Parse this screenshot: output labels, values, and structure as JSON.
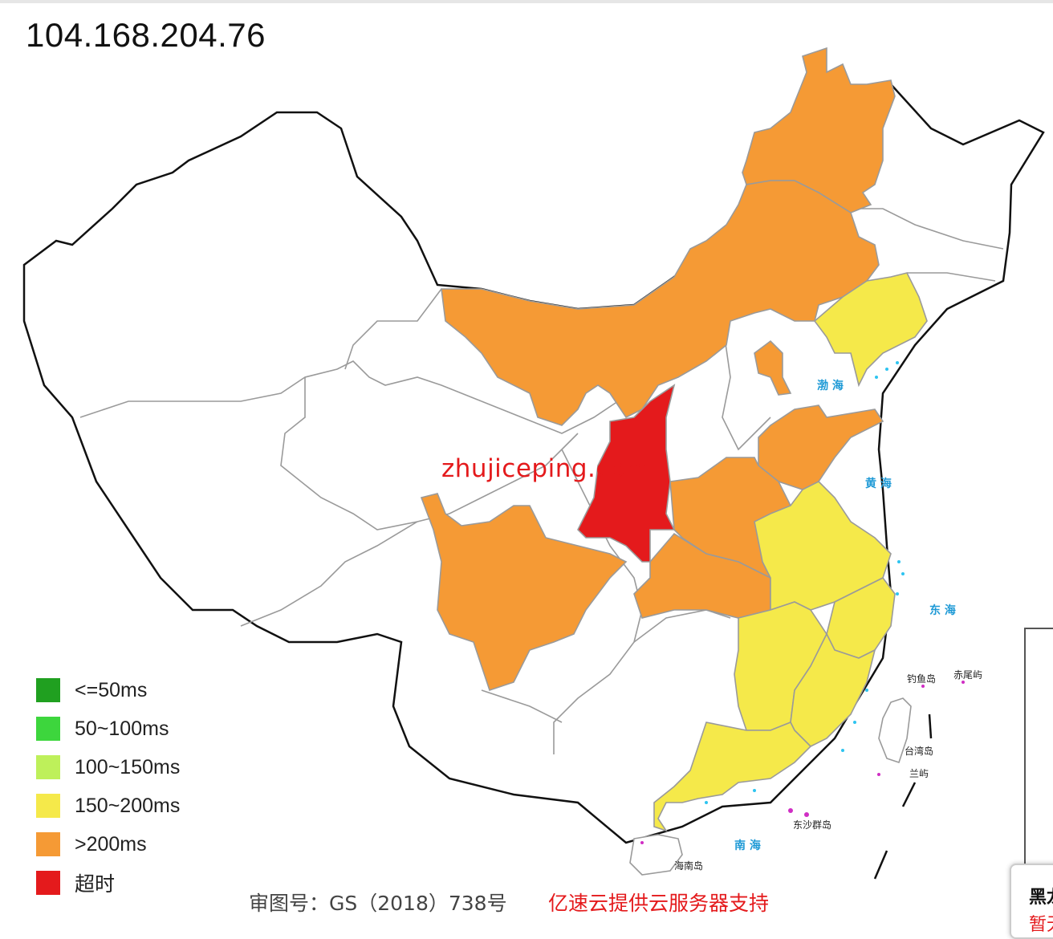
{
  "ip": "104.168.204.76",
  "watermark": "zhujiceping.com",
  "legend": [
    {
      "label": "<=50ms",
      "color": "#20a020"
    },
    {
      "label": "50~100ms",
      "color": "#3dd63d"
    },
    {
      "label": "100~150ms",
      "color": "#bef05a"
    },
    {
      "label": "150~200ms",
      "color": "#f5e94a"
    },
    {
      "label": ">200ms",
      "color": "#f59a35"
    },
    {
      "label": "超时",
      "color": "#e41a1c"
    }
  ],
  "provinces": [
    {
      "name": "heilongjiang",
      "status": ">200ms",
      "color": "#f59a35"
    },
    {
      "name": "inner-mongolia",
      "status": ">200ms",
      "color": "#f59a35"
    },
    {
      "name": "liaoning",
      "status": "150~200ms",
      "color": "#f5e94a"
    },
    {
      "name": "beijing",
      "status": ">200ms",
      "color": "#f59a35"
    },
    {
      "name": "shaanxi",
      "status": "超时",
      "color": "#e41a1c"
    },
    {
      "name": "shandong",
      "status": ">200ms",
      "color": "#f59a35"
    },
    {
      "name": "henan",
      "status": ">200ms",
      "color": "#f59a35"
    },
    {
      "name": "hubei",
      "status": ">200ms",
      "color": "#f59a35"
    },
    {
      "name": "sichuan",
      "status": ">200ms",
      "color": "#f59a35"
    },
    {
      "name": "jiangsu-anhui",
      "status": "150~200ms",
      "color": "#f5e94a"
    },
    {
      "name": "zhejiang",
      "status": "150~200ms",
      "color": "#f5e94a"
    },
    {
      "name": "jiangxi",
      "status": "150~200ms",
      "color": "#f5e94a"
    },
    {
      "name": "fujian",
      "status": "150~200ms",
      "color": "#f5e94a"
    },
    {
      "name": "guangdong",
      "status": "150~200ms",
      "color": "#f5e94a"
    }
  ],
  "map_labels": {
    "bohai": "渤 海",
    "huanghai": "黄 海",
    "donghai": "东 海",
    "nanhai": "南 海",
    "diaoyu": "钓鱼岛",
    "chiwei": "赤尾屿",
    "taiwan": "台湾岛",
    "lanyu": "兰屿",
    "dongsha": "东沙群岛",
    "hainan": "海南岛"
  },
  "footer": {
    "approval": "审图号：GS（2018）738号",
    "sponsor": "亿速云提供云服务器支持"
  },
  "tooltip": {
    "title": "黑龙江",
    "status": "暂无"
  }
}
